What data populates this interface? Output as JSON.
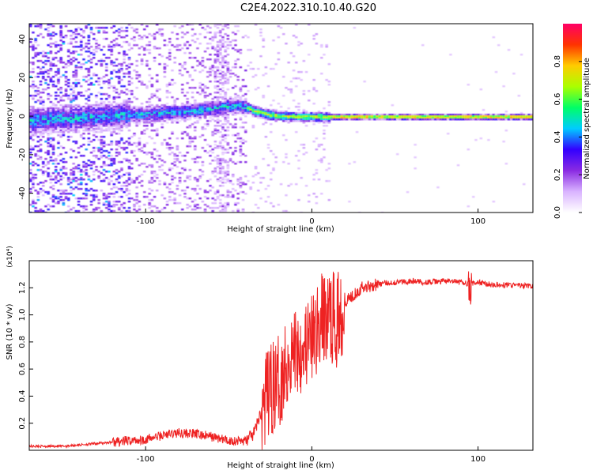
{
  "figure": {
    "title": "C2E4.2022.310.10.40.G20"
  },
  "chart_data": [
    {
      "type": "heatmap",
      "title": "C2E4.2022.310.10.40.G20",
      "xlabel": "Height of straight line (km)",
      "ylabel": "Frequency (Hz)",
      "xlim": [
        -170,
        133
      ],
      "ylim": [
        -50,
        48
      ],
      "x_ticks": [
        -100,
        0,
        100
      ],
      "y_ticks": [
        -40,
        -20,
        0,
        20,
        40
      ],
      "colorbar": {
        "label": "Normalized spectral amplitude",
        "range": [
          0,
          1
        ],
        "ticks": [
          0.0,
          0.2,
          0.4,
          0.6,
          0.8
        ],
        "colors": [
          "#ffffff",
          "#d9b3ff",
          "#8a2be2",
          "#3300ff",
          "#00ccff",
          "#00ff66",
          "#aaff00",
          "#ffcc00",
          "#ff3300",
          "#ff0066"
        ]
      },
      "ridge": {
        "x": [
          -170,
          -150,
          -130,
          -110,
          -90,
          -70,
          -55,
          -45,
          -40,
          -35,
          -30,
          -25,
          -20,
          -10,
          0,
          10,
          20,
          60,
          100,
          133
        ],
        "y": [
          -2,
          -1,
          0,
          1,
          2,
          3,
          5,
          6,
          5,
          3,
          2,
          1,
          0.5,
          0,
          0,
          0,
          0,
          0,
          0,
          0
        ]
      }
    },
    {
      "type": "line",
      "xlabel": "Height of straight line (km)",
      "ylabel": "SNR (10 * v/v)",
      "y_multiplier": "(x10⁴)",
      "xlim": [
        -170,
        133
      ],
      "ylim": [
        0,
        1.4
      ],
      "x_ticks": [
        -100,
        0,
        100
      ],
      "y_ticks": [
        0.2,
        0.4,
        0.6,
        0.8,
        1.0,
        1.2
      ],
      "series": [
        {
          "color": "#ee2222",
          "x": [
            -170,
            -150,
            -130,
            -110,
            -100,
            -90,
            -80,
            -70,
            -60,
            -50,
            -40,
            -35,
            -30,
            -25,
            -20,
            -15,
            -10,
            -5,
            0,
            5,
            10,
            15,
            20,
            25,
            30,
            40,
            50,
            60,
            70,
            80,
            90,
            95,
            100,
            110,
            120,
            133
          ],
          "y": [
            0.03,
            0.03,
            0.05,
            0.07,
            0.08,
            0.11,
            0.13,
            0.12,
            0.1,
            0.07,
            0.07,
            0.12,
            0.3,
            0.45,
            0.5,
            0.65,
            0.75,
            0.78,
            0.8,
            0.95,
            1.0,
            0.95,
            1.1,
            1.15,
            1.2,
            1.23,
            1.24,
            1.25,
            1.24,
            1.25,
            1.24,
            1.23,
            1.24,
            1.22,
            1.22,
            1.21
          ]
        }
      ]
    }
  ]
}
